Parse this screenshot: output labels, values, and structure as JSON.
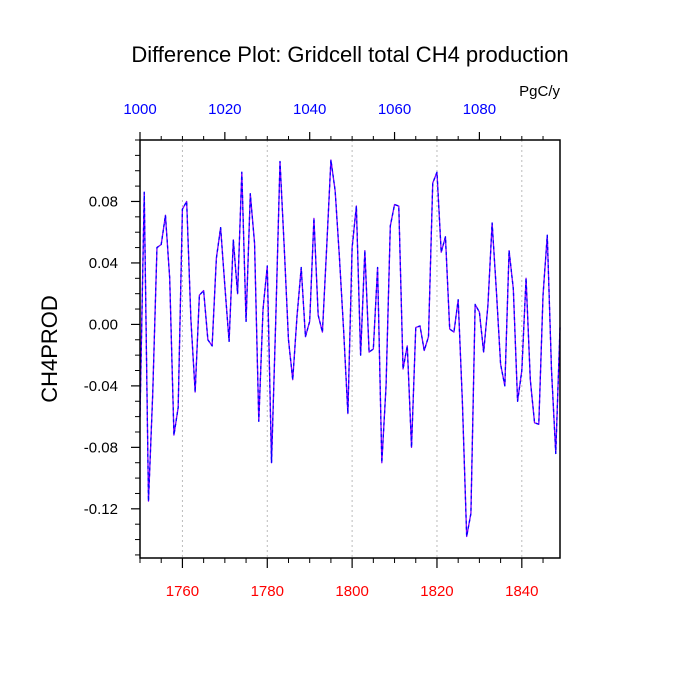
{
  "chart_data": {
    "type": "line",
    "title": "Difference Plot: Gridcell total CH4 production",
    "units": "PgC/y",
    "ylabel": "CH4PROD",
    "xlabel": "",
    "xlim": [
      1750,
      1849
    ],
    "ylim": [
      -0.152,
      0.12
    ],
    "grid": "vertical-dashed",
    "colors": {
      "bottom_axis": "#ff0000",
      "top_axis": "#0000ff",
      "series": "#8000ff",
      "series_overlay": "#0000ff"
    },
    "x_ticks": [
      1760,
      1780,
      1800,
      1820,
      1840
    ],
    "y_ticks": [
      {
        "value": 0.08,
        "label": "0.08"
      },
      {
        "value": 0.04,
        "label": "0.04"
      },
      {
        "value": 0.0,
        "label": "0.00"
      },
      {
        "value": -0.04,
        "label": "-0.04"
      },
      {
        "value": -0.08,
        "label": "-0.08"
      },
      {
        "value": -0.12,
        "label": "-0.12"
      }
    ],
    "top_axis": {
      "range": [
        1000,
        1099
      ],
      "ticks": [
        1000,
        1020,
        1040,
        1060,
        1080
      ]
    },
    "series": [
      {
        "x_start": 1750,
        "values": [
          -0.06,
          0.086,
          -0.115,
          -0.045,
          0.05,
          0.052,
          0.071,
          0.03,
          -0.072,
          -0.054,
          0.075,
          0.08,
          0.003,
          -0.044,
          0.019,
          0.022,
          -0.01,
          -0.014,
          0.043,
          0.063,
          0.025,
          -0.011,
          0.055,
          0.02,
          0.099,
          0.002,
          0.085,
          0.053,
          -0.063,
          0.01,
          0.038,
          -0.09,
          0.003,
          0.106,
          0.05,
          -0.01,
          -0.036,
          0.005,
          0.037,
          -0.008,
          0.002,
          0.069,
          0.006,
          -0.005,
          0.05,
          0.107,
          0.087,
          0.044,
          -0.004,
          -0.058,
          0.05,
          0.077,
          -0.02,
          0.048,
          -0.018,
          -0.016,
          0.037,
          -0.09,
          -0.04,
          0.064,
          0.078,
          0.077,
          -0.029,
          -0.014,
          -0.08,
          -0.002,
          -0.001,
          -0.017,
          -0.008,
          0.092,
          0.099,
          0.047,
          0.057,
          -0.003,
          -0.005,
          0.016,
          -0.051,
          -0.138,
          -0.123,
          0.013,
          0.008,
          -0.018,
          0.012,
          0.066,
          0.022,
          -0.026,
          -0.04,
          0.048,
          0.023,
          -0.05,
          -0.03,
          0.03,
          -0.036,
          -0.064,
          -0.065,
          0.019,
          0.058,
          -0.03,
          -0.084,
          -0.002
        ]
      }
    ]
  }
}
